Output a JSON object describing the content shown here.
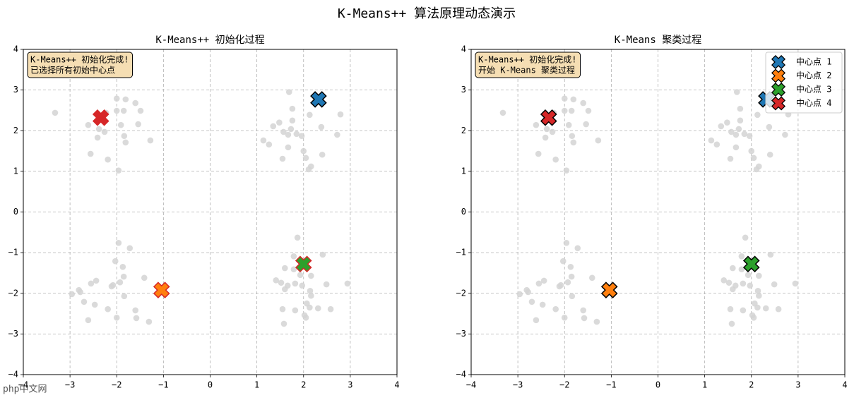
{
  "title": "K-Means++ 算法原理动态演示",
  "watermark": "php中文网",
  "chart_data": [
    {
      "type": "scatter",
      "title": "K-Means++ 初始化过程",
      "annotation": [
        "K-Means++ 初始化完成!",
        "已选择所有初始中心点"
      ],
      "xlim": [
        -4,
        4
      ],
      "ylim": [
        -4,
        4
      ],
      "grid": true,
      "xticks": [
        {
          "value": -4,
          "label": "−4"
        },
        {
          "value": -3,
          "label": "−3"
        },
        {
          "value": -2,
          "label": "−2"
        },
        {
          "value": -1,
          "label": "−1"
        },
        0,
        1,
        2,
        3,
        4
      ],
      "yticks": [
        {
          "value": -4,
          "label": "−4"
        },
        {
          "value": -3,
          "label": "−3"
        },
        {
          "value": -2,
          "label": "−2"
        },
        {
          "value": -1,
          "label": "−1"
        },
        0,
        1,
        2,
        3,
        4
      ],
      "series": [
        {
          "color": "#d3d3d3",
          "marker": "o",
          "x": [
            -3.32,
            -2.56,
            -2.41,
            -2.38,
            -2.23,
            -2.0,
            -1.81,
            -1.6,
            -1.49,
            -1.85,
            -2.0,
            -1.91,
            -1.84,
            -1.81,
            -1.54,
            -1.28,
            -1.96,
            -2.19,
            -2.26,
            -2.61,
            1.69,
            1.76,
            1.76,
            1.73,
            1.67,
            1.48,
            1.35,
            1.57,
            1.85,
            1.96,
            2.13,
            2.38,
            2.79,
            2.72,
            2.4,
            2.0,
            2.05,
            2.16,
            2.11,
            1.14,
            1.26,
            1.55,
            1.67,
            -1.96,
            -1.72,
            -2.03,
            -1.87,
            -1.85,
            -1.93,
            -2.08,
            -2.11,
            -2.44,
            -2.55,
            -2.81,
            -2.78,
            -2.96,
            -2.7,
            -2.47,
            -2.61,
            -2.19,
            -2.0,
            -1.84,
            -1.6,
            -1.58,
            -1.31,
            -1.41,
            1.87,
            2.41,
            1.79,
            1.79,
            1.6,
            1.41,
            1.52,
            1.66,
            1.6,
            1.82,
            2.16,
            1.93,
            1.97,
            2.14,
            2.49,
            2.94,
            2.16,
            2.07,
            2.13,
            2.31,
            2.58,
            1.55,
            1.58,
            2.02,
            2.05,
            1.82
          ],
          "y": [
            2.44,
            1.43,
            1.83,
            2.04,
            2.44,
            2.79,
            2.77,
            2.68,
            2.49,
            2.49,
            2.49,
            2.14,
            1.87,
            1.71,
            2.16,
            1.76,
            1.02,
            1.29,
            1.97,
            2.14,
            2.95,
            2.54,
            2.25,
            2.04,
            1.9,
            2.2,
            2.11,
            1.97,
            1.92,
            1.87,
            2.39,
            2.09,
            2.4,
            1.9,
            1.41,
            1.5,
            1.33,
            1.12,
            1.05,
            1.76,
            1.66,
            1.31,
            1.59,
            -0.76,
            -0.89,
            -1.21,
            -1.35,
            -1.59,
            -1.73,
            -1.8,
            -1.83,
            -1.69,
            -1.76,
            -1.92,
            -1.97,
            -2.02,
            -2.21,
            -2.28,
            -2.66,
            -2.39,
            -2.6,
            -2.07,
            -2.42,
            -2.61,
            -2.7,
            -1.62,
            -0.63,
            -1.05,
            -1.09,
            -1.41,
            -1.38,
            -1.68,
            -1.74,
            -1.81,
            -1.9,
            -1.76,
            -1.57,
            -1.55,
            -1.81,
            -1.94,
            -1.78,
            -1.76,
            -2.06,
            -2.25,
            -2.35,
            -2.37,
            -2.39,
            -2.39,
            -2.75,
            -2.54,
            -2.6,
            -2.42
          ]
        },
        {
          "color": "#1f77b4",
          "edgecolor": "#000000",
          "marker": "X",
          "x": [
            2.32
          ],
          "y": [
            2.77
          ]
        },
        {
          "color": "#ff7f0e",
          "edgecolor": "#d62728",
          "marker": "X",
          "x": [
            -1.04
          ],
          "y": [
            -1.92
          ]
        },
        {
          "color": "#2ca02c",
          "edgecolor": "#d62728",
          "marker": "X",
          "x": [
            2.0
          ],
          "y": [
            -1.28
          ]
        },
        {
          "color": "#d62728",
          "edgecolor": "#d62728",
          "marker": "X",
          "x": [
            -2.34
          ],
          "y": [
            2.32
          ]
        }
      ]
    },
    {
      "type": "scatter",
      "title": "K-Means 聚类过程",
      "annotation": [
        "K-Means++ 初始化完成!",
        "开始 K-Means 聚类过程"
      ],
      "xlim": [
        -4,
        4
      ],
      "ylim": [
        -4,
        4
      ],
      "grid": true,
      "legend": "upper right",
      "xticks": [
        {
          "value": -4,
          "label": "−4"
        },
        {
          "value": -3,
          "label": "−3"
        },
        {
          "value": -2,
          "label": "−2"
        },
        {
          "value": -1,
          "label": "−1"
        },
        0,
        1,
        2,
        3,
        4
      ],
      "yticks": [
        {
          "value": -4,
          "label": "−4"
        },
        {
          "value": -3,
          "label": "−3"
        },
        {
          "value": -2,
          "label": "−2"
        },
        {
          "value": -1,
          "label": "−1"
        },
        0,
        1,
        2,
        3,
        4
      ],
      "series": [
        {
          "color": "#d3d3d3",
          "marker": "o",
          "x": [
            -3.32,
            -2.56,
            -2.41,
            -2.38,
            -2.23,
            -2.0,
            -1.81,
            -1.6,
            -1.49,
            -1.85,
            -2.0,
            -1.91,
            -1.84,
            -1.81,
            -1.54,
            -1.28,
            -1.96,
            -2.19,
            -2.26,
            -2.61,
            1.69,
            1.76,
            1.76,
            1.73,
            1.67,
            1.48,
            1.35,
            1.57,
            1.85,
            1.96,
            2.13,
            2.38,
            2.79,
            2.72,
            2.4,
            2.0,
            2.05,
            2.16,
            2.11,
            1.14,
            1.26,
            1.55,
            1.67,
            -1.96,
            -1.72,
            -2.03,
            -1.87,
            -1.85,
            -1.93,
            -2.08,
            -2.11,
            -2.44,
            -2.55,
            -2.81,
            -2.78,
            -2.96,
            -2.7,
            -2.47,
            -2.61,
            -2.19,
            -2.0,
            -1.84,
            -1.6,
            -1.58,
            -1.31,
            -1.41,
            1.87,
            2.41,
            1.79,
            1.79,
            1.6,
            1.41,
            1.52,
            1.66,
            1.6,
            1.82,
            2.16,
            1.93,
            1.97,
            2.14,
            2.49,
            2.94,
            2.16,
            2.07,
            2.13,
            2.31,
            2.58,
            1.55,
            1.58,
            2.02,
            2.05,
            1.82
          ],
          "y": [
            2.44,
            1.43,
            1.83,
            2.04,
            2.44,
            2.79,
            2.77,
            2.68,
            2.49,
            2.49,
            2.49,
            2.14,
            1.87,
            1.71,
            2.16,
            1.76,
            1.02,
            1.29,
            1.97,
            2.14,
            2.95,
            2.54,
            2.25,
            2.04,
            1.9,
            2.2,
            2.11,
            1.97,
            1.92,
            1.87,
            2.39,
            2.09,
            2.4,
            1.9,
            1.41,
            1.5,
            1.33,
            1.12,
            1.05,
            1.76,
            1.66,
            1.31,
            1.59,
            -0.76,
            -0.89,
            -1.21,
            -1.35,
            -1.59,
            -1.73,
            -1.8,
            -1.83,
            -1.69,
            -1.76,
            -1.92,
            -1.97,
            -2.02,
            -2.21,
            -2.28,
            -2.66,
            -2.39,
            -2.6,
            -2.07,
            -2.42,
            -2.61,
            -2.7,
            -1.62,
            -0.63,
            -1.05,
            -1.09,
            -1.41,
            -1.38,
            -1.68,
            -1.74,
            -1.81,
            -1.9,
            -1.76,
            -1.57,
            -1.55,
            -1.81,
            -1.94,
            -1.78,
            -1.76,
            -2.06,
            -2.25,
            -2.35,
            -2.37,
            -2.39,
            -2.39,
            -2.75,
            -2.54,
            -2.6,
            -2.42
          ]
        },
        {
          "name": "中心点 1",
          "color": "#1f77b4",
          "edgecolor": "#000000",
          "marker": "X",
          "x": [
            2.32
          ],
          "y": [
            2.77
          ]
        },
        {
          "name": "中心点 2",
          "color": "#ff7f0e",
          "edgecolor": "#000000",
          "marker": "X",
          "x": [
            -1.04
          ],
          "y": [
            -1.92
          ]
        },
        {
          "name": "中心点 3",
          "color": "#2ca02c",
          "edgecolor": "#000000",
          "marker": "X",
          "x": [
            2.0
          ],
          "y": [
            -1.28
          ]
        },
        {
          "name": "中心点 4",
          "color": "#d62728",
          "edgecolor": "#000000",
          "marker": "X",
          "x": [
            -2.34
          ],
          "y": [
            2.32
          ]
        }
      ]
    }
  ]
}
